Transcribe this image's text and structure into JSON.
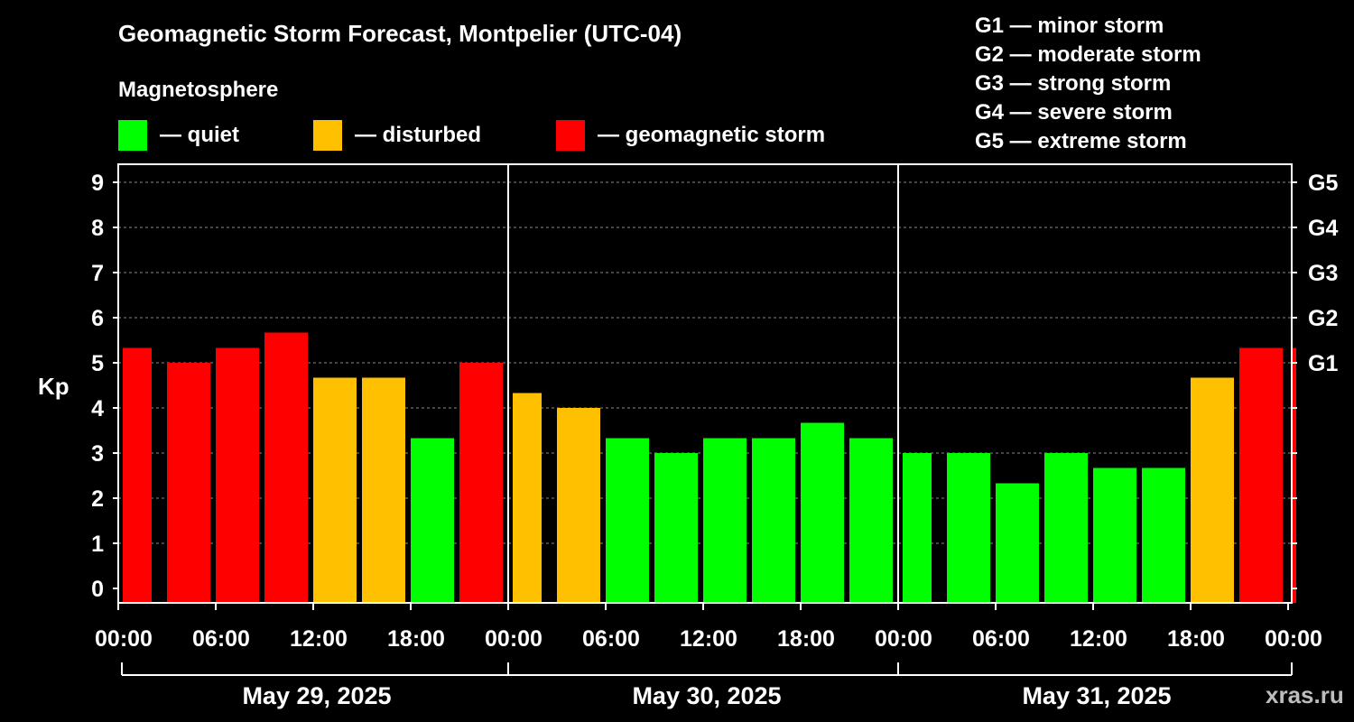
{
  "header": {
    "title": "Geomagnetic Storm Forecast, Montpelier (UTC-04)",
    "subtitle": "Magnetosphere"
  },
  "legend": [
    {
      "label": "— quiet",
      "color": "#00ff00"
    },
    {
      "label": "— disturbed",
      "color": "#ffc000"
    },
    {
      "label": "— geomagnetic storm",
      "color": "#ff0000"
    }
  ],
  "storm_scale": [
    "G1 — minor storm",
    "G2 — moderate storm",
    "G3 — strong storm",
    "G4 — severe storm",
    "G5 — extreme storm"
  ],
  "watermark": "xras.ru",
  "chart_data": {
    "type": "bar",
    "ylabel": "Kp",
    "ylim": [
      0,
      9
    ],
    "y_ticks": [
      "0",
      "1",
      "2",
      "3",
      "4",
      "5",
      "6",
      "7",
      "8",
      "9"
    ],
    "right_ticks": [
      {
        "value": 5,
        "label": "G1"
      },
      {
        "value": 6,
        "label": "G2"
      },
      {
        "value": 7,
        "label": "G3"
      },
      {
        "value": 8,
        "label": "G4"
      },
      {
        "value": 9,
        "label": "G5"
      }
    ],
    "x_tick_labels": [
      "00:00",
      "06:00",
      "12:00",
      "18:00",
      "00:00",
      "06:00",
      "12:00",
      "18:00",
      "00:00",
      "06:00",
      "12:00",
      "18:00",
      "00:00"
    ],
    "days": [
      "May 29, 2025",
      "May 30, 2025",
      "May 31, 2025"
    ],
    "grid": "dashed horizontal",
    "colors": {
      "quiet": "#00ff00",
      "disturbed": "#ffc000",
      "storm": "#ff0000"
    },
    "values": [
      5.33,
      5.0,
      5.33,
      5.67,
      4.67,
      4.67,
      3.33,
      5.0,
      4.33,
      4.0,
      3.33,
      3.0,
      3.33,
      3.33,
      3.67,
      3.33,
      3.0,
      3.0,
      2.33,
      3.0,
      2.67,
      2.67,
      4.67,
      5.33,
      5.33
    ]
  }
}
